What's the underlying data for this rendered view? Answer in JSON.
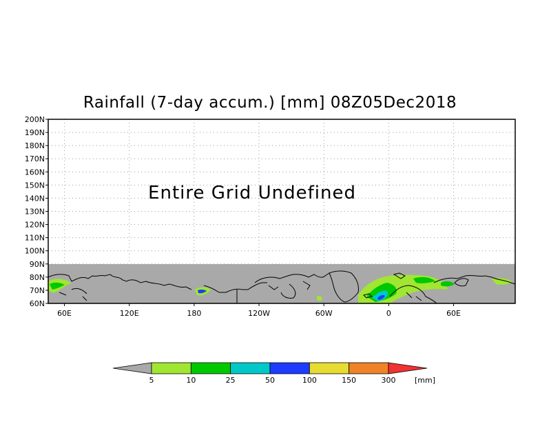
{
  "title": "Rainfall (7-day accum.) [mm] 08Z05Dec2018",
  "map": {
    "undefined_message": "Entire Grid Undefined",
    "lat_labels": [
      "200N",
      "190N",
      "180N",
      "170N",
      "160N",
      "150N",
      "140N",
      "130N",
      "120N",
      "110N",
      "100N",
      "90N",
      "80N",
      "70N",
      "60N"
    ],
    "lon_labels": [
      "60E",
      "120E",
      "180",
      "120W",
      "60W",
      "0",
      "60E"
    ],
    "undefined_region_color": "#a9a9a9",
    "coastline_color": "#000000"
  },
  "colorbar": {
    "unit": "[mm]",
    "ticks": [
      "5",
      "10",
      "25",
      "50",
      "100",
      "150",
      "300"
    ],
    "colors": [
      "#a9a9a9",
      "#a0e632",
      "#00c800",
      "#00c8c8",
      "#1e3cff",
      "#e6dc32",
      "#f08228",
      "#f03232"
    ]
  }
}
